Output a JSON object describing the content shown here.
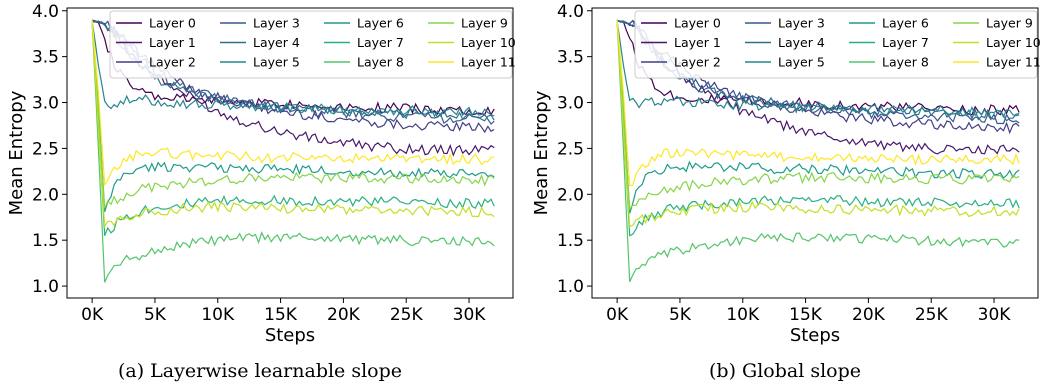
{
  "chart_data": [
    {
      "type": "line",
      "caption": "(a) Layerwise learnable slope",
      "xlabel": "Steps",
      "ylabel": "Mean Entropy",
      "xlim": [
        -2000,
        33500
      ],
      "ylim": [
        0.87,
        4.03
      ],
      "xticks": [
        0,
        5000,
        10000,
        15000,
        20000,
        25000,
        30000
      ],
      "xtick_labels": [
        "0K",
        "5K",
        "10K",
        "15K",
        "20K",
        "25K",
        "30K"
      ],
      "yticks": [
        1.0,
        1.5,
        2.0,
        2.5,
        3.0,
        3.5,
        4.0
      ],
      "ytick_labels": [
        "1.0",
        "1.5",
        "2.0",
        "2.5",
        "3.0",
        "3.5",
        "4.0"
      ],
      "grid": false,
      "legend_position": "top-right",
      "x": [
        0,
        500,
        1000,
        1500,
        2000,
        3000,
        4000,
        5000,
        6000,
        8000,
        10000,
        12000,
        14000,
        16000,
        18000,
        20000,
        22000,
        24000,
        26000,
        28000,
        30000,
        32000
      ],
      "series": [
        {
          "name": "Layer 0",
          "color": "#440154",
          "values": [
            3.89,
            3.88,
            3.7,
            3.5,
            3.35,
            3.2,
            3.1,
            3.06,
            3.05,
            3.03,
            3.02,
            3.0,
            3.0,
            2.98,
            2.97,
            2.96,
            2.95,
            2.94,
            2.93,
            2.92,
            2.92,
            2.92
          ]
        },
        {
          "name": "Layer 1",
          "color": "#48186a",
          "values": [
            3.89,
            3.88,
            3.85,
            3.8,
            3.72,
            3.55,
            3.4,
            3.3,
            3.2,
            3.05,
            2.9,
            2.8,
            2.72,
            2.65,
            2.6,
            2.56,
            2.53,
            2.5,
            2.49,
            2.48,
            2.48,
            2.49
          ]
        },
        {
          "name": "Layer 2",
          "color": "#433d84",
          "values": [
            3.89,
            3.88,
            3.86,
            3.82,
            3.75,
            3.62,
            3.5,
            3.4,
            3.3,
            3.15,
            3.05,
            2.98,
            2.92,
            2.88,
            2.85,
            2.82,
            2.79,
            2.77,
            2.75,
            2.74,
            2.73,
            2.72
          ]
        },
        {
          "name": "Layer 3",
          "color": "#38598c",
          "values": [
            3.89,
            3.88,
            3.86,
            3.84,
            3.78,
            3.6,
            3.45,
            3.35,
            3.25,
            3.12,
            3.05,
            3.0,
            2.96,
            2.93,
            2.9,
            2.88,
            2.86,
            2.85,
            2.84,
            2.83,
            2.82,
            2.82
          ]
        },
        {
          "name": "Layer 4",
          "color": "#2d708e",
          "values": [
            3.89,
            3.88,
            3.85,
            3.8,
            3.7,
            3.52,
            3.38,
            3.28,
            3.2,
            3.1,
            3.04,
            3.0,
            2.97,
            2.95,
            2.93,
            2.91,
            2.9,
            2.89,
            2.88,
            2.87,
            2.86,
            2.85
          ]
        },
        {
          "name": "Layer 5",
          "color": "#25858e",
          "values": [
            3.89,
            3.4,
            3.02,
            2.98,
            3.0,
            3.02,
            3.03,
            3.02,
            3.0,
            2.98,
            2.97,
            2.96,
            2.95,
            2.94,
            2.93,
            2.92,
            2.92,
            2.91,
            2.91,
            2.9,
            2.9,
            2.9
          ]
        },
        {
          "name": "Layer 6",
          "color": "#1e9b8a",
          "values": [
            3.89,
            3.0,
            1.8,
            2.0,
            2.15,
            2.25,
            2.28,
            2.3,
            2.3,
            2.3,
            2.29,
            2.28,
            2.28,
            2.27,
            2.26,
            2.25,
            2.24,
            2.24,
            2.23,
            2.22,
            2.22,
            2.21
          ]
        },
        {
          "name": "Layer 7",
          "color": "#2ab07f",
          "values": [
            3.89,
            2.8,
            1.55,
            1.62,
            1.7,
            1.78,
            1.83,
            1.86,
            1.88,
            1.9,
            1.92,
            1.93,
            1.93,
            1.93,
            1.93,
            1.92,
            1.92,
            1.92,
            1.91,
            1.91,
            1.9,
            1.9
          ]
        },
        {
          "name": "Layer 8",
          "color": "#52c569",
          "values": [
            3.89,
            2.5,
            1.05,
            1.15,
            1.22,
            1.3,
            1.35,
            1.38,
            1.42,
            1.47,
            1.5,
            1.52,
            1.53,
            1.53,
            1.53,
            1.52,
            1.51,
            1.5,
            1.49,
            1.49,
            1.48,
            1.47
          ]
        },
        {
          "name": "Layer 9",
          "color": "#86d549",
          "values": [
            3.89,
            2.9,
            1.85,
            1.9,
            1.95,
            2.02,
            2.06,
            2.08,
            2.1,
            2.13,
            2.15,
            2.17,
            2.18,
            2.18,
            2.18,
            2.18,
            2.18,
            2.17,
            2.17,
            2.16,
            2.16,
            2.15
          ]
        },
        {
          "name": "Layer 10",
          "color": "#c2df23",
          "values": [
            3.89,
            2.7,
            1.65,
            1.68,
            1.72,
            1.76,
            1.8,
            1.82,
            1.83,
            1.85,
            1.86,
            1.86,
            1.85,
            1.84,
            1.84,
            1.83,
            1.83,
            1.82,
            1.82,
            1.81,
            1.81,
            1.8
          ]
        },
        {
          "name": "Layer 11",
          "color": "#fde725",
          "values": [
            3.89,
            3.1,
            2.1,
            2.2,
            2.3,
            2.4,
            2.45,
            2.46,
            2.45,
            2.43,
            2.42,
            2.41,
            2.4,
            2.4,
            2.39,
            2.39,
            2.38,
            2.38,
            2.38,
            2.38,
            2.38,
            2.38
          ]
        }
      ]
    },
    {
      "type": "line",
      "caption": "(b) Global slope",
      "xlabel": "Steps",
      "ylabel": "Mean Entropy",
      "xlim": [
        -2000,
        33500
      ],
      "ylim": [
        0.87,
        4.03
      ],
      "xticks": [
        0,
        5000,
        10000,
        15000,
        20000,
        25000,
        30000
      ],
      "xtick_labels": [
        "0K",
        "5K",
        "10K",
        "15K",
        "20K",
        "25K",
        "30K"
      ],
      "yticks": [
        1.0,
        1.5,
        2.0,
        2.5,
        3.0,
        3.5,
        4.0
      ],
      "ytick_labels": [
        "1.0",
        "1.5",
        "2.0",
        "2.5",
        "3.0",
        "3.5",
        "4.0"
      ],
      "grid": false,
      "legend_position": "top-right",
      "x": [
        0,
        500,
        1000,
        1500,
        2000,
        3000,
        4000,
        5000,
        6000,
        8000,
        10000,
        12000,
        14000,
        16000,
        18000,
        20000,
        22000,
        24000,
        26000,
        28000,
        30000,
        32000
      ],
      "series": [
        {
          "name": "Layer 0",
          "color": "#440154",
          "values": [
            3.89,
            3.88,
            3.7,
            3.5,
            3.35,
            3.2,
            3.1,
            3.06,
            3.05,
            3.03,
            3.02,
            3.0,
            3.0,
            2.98,
            2.97,
            2.96,
            2.95,
            2.94,
            2.93,
            2.92,
            2.92,
            2.92
          ]
        },
        {
          "name": "Layer 1",
          "color": "#48186a",
          "values": [
            3.89,
            3.88,
            3.85,
            3.8,
            3.72,
            3.55,
            3.4,
            3.3,
            3.2,
            3.05,
            2.9,
            2.8,
            2.72,
            2.65,
            2.6,
            2.56,
            2.53,
            2.5,
            2.49,
            2.48,
            2.48,
            2.49
          ]
        },
        {
          "name": "Layer 2",
          "color": "#433d84",
          "values": [
            3.89,
            3.88,
            3.86,
            3.82,
            3.75,
            3.62,
            3.5,
            3.4,
            3.3,
            3.15,
            3.05,
            2.98,
            2.92,
            2.88,
            2.85,
            2.82,
            2.79,
            2.77,
            2.75,
            2.74,
            2.73,
            2.72
          ]
        },
        {
          "name": "Layer 3",
          "color": "#38598c",
          "values": [
            3.89,
            3.88,
            3.86,
            3.84,
            3.78,
            3.6,
            3.45,
            3.35,
            3.25,
            3.12,
            3.05,
            3.0,
            2.96,
            2.93,
            2.9,
            2.88,
            2.86,
            2.85,
            2.84,
            2.83,
            2.82,
            2.82
          ]
        },
        {
          "name": "Layer 4",
          "color": "#2d708e",
          "values": [
            3.89,
            3.88,
            3.85,
            3.8,
            3.7,
            3.52,
            3.38,
            3.28,
            3.2,
            3.1,
            3.04,
            3.0,
            2.97,
            2.95,
            2.93,
            2.91,
            2.9,
            2.89,
            2.88,
            2.87,
            2.86,
            2.85
          ]
        },
        {
          "name": "Layer 5",
          "color": "#25858e",
          "values": [
            3.89,
            3.4,
            3.02,
            2.98,
            3.0,
            3.02,
            3.03,
            3.02,
            3.0,
            2.98,
            2.97,
            2.96,
            2.95,
            2.94,
            2.93,
            2.92,
            2.92,
            2.91,
            2.91,
            2.9,
            2.9,
            2.9
          ]
        },
        {
          "name": "Layer 6",
          "color": "#1e9b8a",
          "values": [
            3.89,
            3.0,
            1.8,
            2.0,
            2.15,
            2.25,
            2.28,
            2.3,
            2.3,
            2.3,
            2.29,
            2.28,
            2.28,
            2.27,
            2.26,
            2.25,
            2.24,
            2.24,
            2.23,
            2.22,
            2.22,
            2.21
          ]
        },
        {
          "name": "Layer 7",
          "color": "#2ab07f",
          "values": [
            3.89,
            2.8,
            1.55,
            1.62,
            1.7,
            1.78,
            1.83,
            1.86,
            1.88,
            1.9,
            1.92,
            1.93,
            1.93,
            1.93,
            1.93,
            1.92,
            1.92,
            1.92,
            1.91,
            1.91,
            1.9,
            1.9
          ]
        },
        {
          "name": "Layer 8",
          "color": "#52c569",
          "values": [
            3.89,
            2.5,
            1.05,
            1.15,
            1.22,
            1.3,
            1.35,
            1.38,
            1.42,
            1.47,
            1.5,
            1.52,
            1.53,
            1.53,
            1.53,
            1.52,
            1.51,
            1.5,
            1.49,
            1.49,
            1.48,
            1.47
          ]
        },
        {
          "name": "Layer 9",
          "color": "#86d549",
          "values": [
            3.89,
            2.9,
            1.85,
            1.9,
            1.95,
            2.02,
            2.06,
            2.08,
            2.1,
            2.13,
            2.15,
            2.17,
            2.18,
            2.18,
            2.18,
            2.18,
            2.18,
            2.17,
            2.17,
            2.16,
            2.16,
            2.15
          ]
        },
        {
          "name": "Layer 10",
          "color": "#c2df23",
          "values": [
            3.89,
            2.7,
            1.65,
            1.68,
            1.72,
            1.76,
            1.8,
            1.82,
            1.83,
            1.85,
            1.86,
            1.86,
            1.85,
            1.84,
            1.84,
            1.83,
            1.83,
            1.82,
            1.82,
            1.81,
            1.81,
            1.8
          ]
        },
        {
          "name": "Layer 11",
          "color": "#fde725",
          "values": [
            3.89,
            3.1,
            2.1,
            2.2,
            2.3,
            2.4,
            2.45,
            2.46,
            2.45,
            2.43,
            2.42,
            2.41,
            2.4,
            2.4,
            2.39,
            2.39,
            2.38,
            2.38,
            2.38,
            2.38,
            2.38,
            2.38
          ]
        }
      ]
    }
  ]
}
